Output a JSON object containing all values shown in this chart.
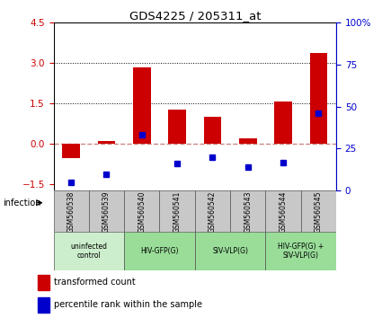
{
  "title": "GDS4225 / 205311_at",
  "samples": [
    "GSM560538",
    "GSM560539",
    "GSM560540",
    "GSM560541",
    "GSM560542",
    "GSM560543",
    "GSM560544",
    "GSM560545"
  ],
  "red_bars": [
    -0.55,
    0.08,
    2.82,
    1.25,
    1.0,
    0.18,
    1.55,
    3.35
  ],
  "blue_dots_pct": [
    5,
    10,
    33,
    16,
    20,
    14,
    17,
    46
  ],
  "ylim_left": [
    -1.75,
    4.5
  ],
  "ylim_right": [
    0,
    100
  ],
  "yticks_left": [
    -1.5,
    0,
    1.5,
    3,
    4.5
  ],
  "yticks_right": [
    0,
    25,
    50,
    75,
    100
  ],
  "groups": [
    {
      "label": "uninfected\ncontrol",
      "start": 0,
      "end": 2,
      "color": "#cceecc"
    },
    {
      "label": "HIV-GFP(G)",
      "start": 2,
      "end": 4,
      "color": "#99dd99"
    },
    {
      "label": "SIV-VLP(G)",
      "start": 4,
      "end": 6,
      "color": "#99dd99"
    },
    {
      "label": "HIV-GFP(G) +\nSIV-VLP(G)",
      "start": 6,
      "end": 8,
      "color": "#99dd99"
    }
  ],
  "red_color": "#cc0000",
  "blue_color": "#0000cc",
  "zero_line_color": "#cc8888",
  "bar_width": 0.5,
  "bg_color_samples": "#c8c8c8",
  "legend_red": "transformed count",
  "legend_blue": "percentile rank within the sample",
  "infection_label": "infection"
}
